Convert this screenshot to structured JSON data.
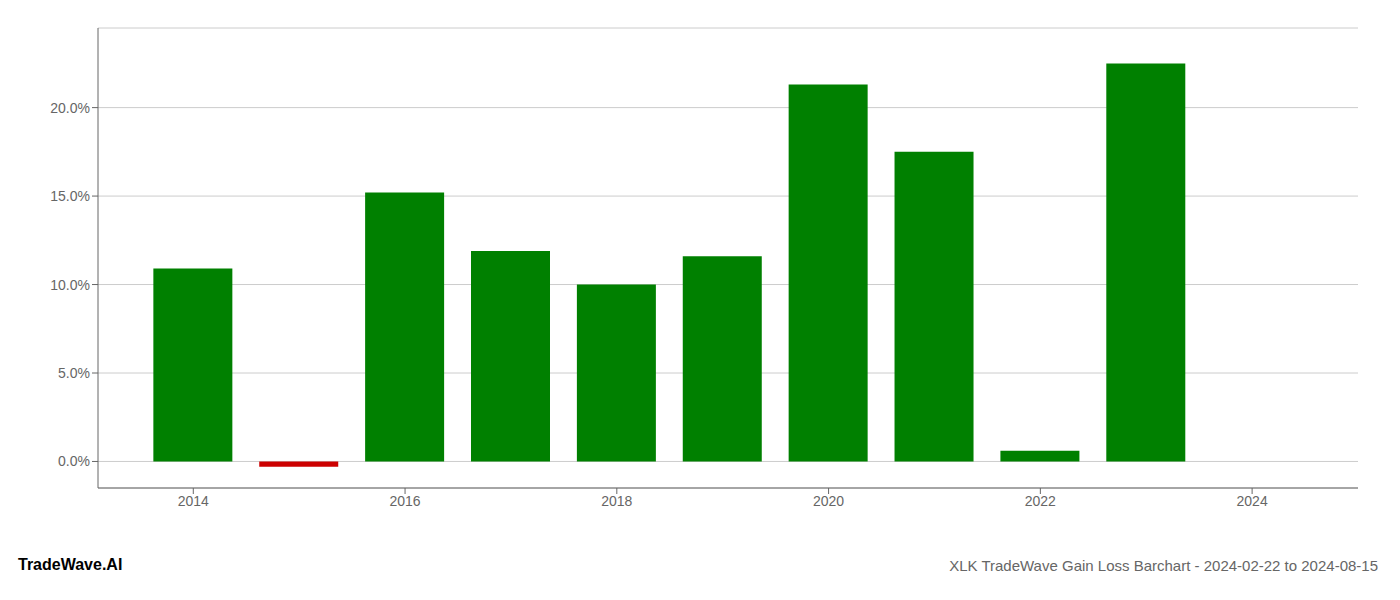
{
  "chart_data": {
    "type": "bar",
    "title": "XLK TradeWave Gain Loss Barchart - 2024-02-22 to 2024-08-15",
    "annotations": [
      "TradeWave.AI"
    ],
    "x": [
      2014,
      2015,
      2016,
      2017,
      2018,
      2019,
      2020,
      2021,
      2022,
      2023
    ],
    "values": [
      10.9,
      -0.3,
      15.2,
      11.9,
      10.0,
      11.6,
      21.3,
      17.5,
      0.6,
      22.5
    ],
    "colors": [
      "#008000",
      "#cc0000",
      "#008000",
      "#008000",
      "#008000",
      "#008000",
      "#008000",
      "#008000",
      "#008000",
      "#008000"
    ],
    "xlim": [
      2013.1,
      2025.0
    ],
    "xticks": [
      2014,
      2016,
      2018,
      2020,
      2022,
      2024
    ],
    "ylim": [
      -1.5,
      24.5
    ],
    "yticks": [
      {
        "value": 0.0,
        "label": "0.0%"
      },
      {
        "value": 5.0,
        "label": "5.0%"
      },
      {
        "value": 10.0,
        "label": "10.0%"
      },
      {
        "value": 15.0,
        "label": "15.0%"
      },
      {
        "value": 20.0,
        "label": "20.0%"
      }
    ],
    "grid": true
  }
}
